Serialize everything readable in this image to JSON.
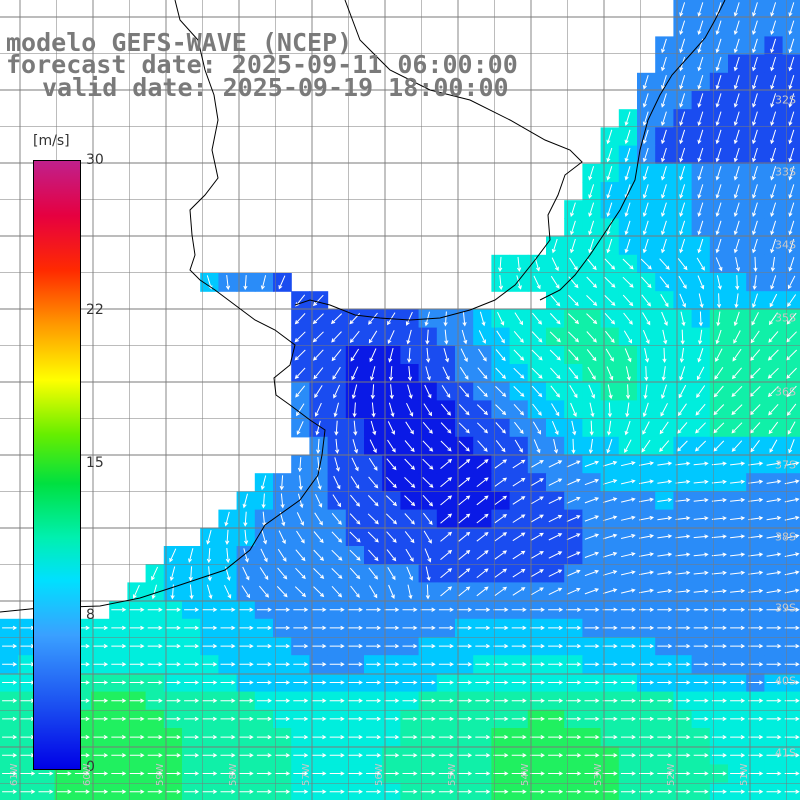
{
  "titles": {
    "model": "modelo GEFS-WAVE (NCEP)",
    "forecast": "forecast date: 2025-09-11 06:00:00",
    "valid": "valid date: 2025-09-19 18:00:00"
  },
  "colorbar": {
    "unit": "[m/s]",
    "ticks": [
      "30",
      "22",
      "15",
      "8",
      "0"
    ],
    "tick_values": [
      30,
      22,
      15,
      8,
      0
    ],
    "min": 0,
    "max": 30,
    "colors": [
      "#0000e6",
      "#3aa0ff",
      "#00e0ff",
      "#00e040",
      "#ffff00",
      "#ff9900",
      "#ff2a00",
      "#c0208c"
    ]
  },
  "map": {
    "lat_labels": [
      "32S",
      "33S",
      "34S",
      "35S",
      "36S",
      "37S",
      "38S",
      "39S",
      "40S",
      "41S"
    ],
    "lon_labels": [
      "61W",
      "60W",
      "59W",
      "58W",
      "57W",
      "56W",
      "55W",
      "54W",
      "53W",
      "52W",
      "51W"
    ],
    "colors": {
      "land": "#ffffff",
      "coastline": "#000000",
      "grid": "#8a8a8a",
      "arrows": "#ffffff"
    }
  }
}
